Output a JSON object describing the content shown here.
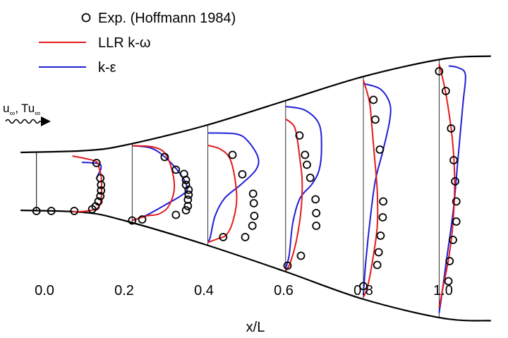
{
  "chart_data": {
    "type": "line",
    "title": "",
    "xlabel": "x/L",
    "ylabel": "",
    "xlim": [
      -0.06,
      1.12
    ],
    "x_ticks": [
      "0.0",
      "0.2",
      "0.4",
      "0.6",
      "0.8",
      "1.0"
    ],
    "x_tick_values": [
      0.0,
      0.2,
      0.4,
      0.6,
      0.8,
      1.0
    ],
    "grid": false,
    "legend_position": "top-left",
    "legend": [
      {
        "label": "Exp. (Hoffmann 1984)",
        "style": "marker",
        "color": "#000000"
      },
      {
        "label": "LLR k-ω",
        "style": "line",
        "color": "#e41a1c"
      },
      {
        "label": "k-ε",
        "style": "line",
        "color": "#1f1fd6"
      }
    ],
    "inflow_label": "u∞, Tu∞",
    "inflow_parts": {
      "u": "u",
      "tu": "Tu",
      "sub": "∞",
      "sep": ","
    },
    "colors": {
      "exp": "#000000",
      "llr": "#e41a1c",
      "ke": "#1f1fd6",
      "wall": "#000000"
    },
    "stations": [
      -0.02,
      0.07,
      0.22,
      0.41,
      0.605,
      0.8,
      0.99
    ],
    "profile_scale": 0.6,
    "walls": {
      "upper": [
        [
          -0.06,
          0.76
        ],
        [
          0.1,
          0.765
        ],
        [
          0.2,
          0.78
        ],
        [
          0.4,
          0.835
        ],
        [
          0.6,
          0.905
        ],
        [
          0.8,
          0.975
        ],
        [
          1.0,
          1.025
        ],
        [
          1.12,
          1.033
        ]
      ],
      "lower": [
        [
          -0.06,
          0.596
        ],
        [
          0.1,
          0.59
        ],
        [
          0.2,
          0.567
        ],
        [
          0.4,
          0.5
        ],
        [
          0.6,
          0.424
        ],
        [
          0.8,
          0.344
        ],
        [
          1.0,
          0.29
        ],
        [
          1.12,
          0.283
        ]
      ]
    },
    "series": [
      {
        "name": "Exp. (Hoffmann 1984)",
        "kind": "points",
        "profiles": [
          {
            "station": -0.02,
            "u": [
              [
                0.0,
                0.594
              ],
              [
                0.062,
                0.594
              ],
              [
                0.158,
                0.594
              ]
            ]
          },
          {
            "station": 0.07,
            "u": [
              [
                0.083,
                0.599
              ],
              [
                0.097,
                0.607
              ],
              [
                0.109,
                0.621
              ],
              [
                0.117,
                0.636
              ],
              [
                0.12,
                0.652
              ],
              [
                0.12,
                0.668
              ],
              [
                0.117,
                0.687
              ],
              [
                0.101,
                0.73
              ]
            ]
          },
          {
            "station": 0.22,
            "u": [
              [
                0.0,
                0.567
              ],
              [
                0.042,
                0.57
              ],
              [
                0.183,
                0.583
              ],
              [
                0.225,
                0.596
              ],
              [
                0.233,
                0.608
              ],
              [
                0.233,
                0.626
              ],
              [
                0.236,
                0.64
              ],
              [
                0.236,
                0.654
              ],
              [
                0.225,
                0.668
              ],
              [
                0.225,
                0.682
              ],
              [
                0.217,
                0.699
              ],
              [
                0.183,
                0.711
              ],
              [
                0.136,
                0.747
              ]
            ]
          },
          {
            "station": 0.41,
            "u": [
              [
                0.064,
                0.52
              ],
              [
                0.156,
                0.52
              ],
              [
                0.186,
                0.552
              ],
              [
                0.194,
                0.58
              ],
              [
                0.192,
                0.616
              ],
              [
                0.189,
                0.643
              ],
              [
                0.144,
                0.698
              ],
              [
                0.103,
                0.753
              ]
            ]
          },
          {
            "station": 0.605,
            "u": [
              [
                0.008,
                0.439
              ],
              [
                0.064,
                0.467
              ],
              [
                0.128,
                0.552
              ],
              [
                0.128,
                0.588
              ],
              [
                0.125,
                0.627
              ],
              [
                0.103,
                0.688
              ],
              [
                0.089,
                0.725
              ],
              [
                0.081,
                0.753
              ],
              [
                0.058,
                0.808
              ]
            ]
          },
          {
            "station": 0.8,
            "u": [
              [
                0.0,
                0.381
              ],
              [
                0.058,
                0.441
              ],
              [
                0.064,
                0.477
              ],
              [
                0.072,
                0.524
              ],
              [
                0.081,
                0.576
              ],
              [
                0.083,
                0.621
              ],
              [
                0.069,
                0.768
              ],
              [
                0.05,
                0.853
              ],
              [
                0.042,
                0.909
              ]
            ]
          },
          {
            "station": 0.99,
            "u": [
              [
                0.039,
                0.395
              ],
              [
                0.044,
                0.452
              ],
              [
                0.058,
                0.512
              ],
              [
                0.072,
                0.564
              ],
              [
                0.072,
                0.621
              ],
              [
                0.067,
                0.678
              ],
              [
                0.061,
                0.738
              ],
              [
                0.05,
                0.828
              ],
              [
                0.028,
                0.934
              ],
              [
                0.0,
                0.99
              ]
            ]
          }
        ]
      },
      {
        "name": "LLR k-ω",
        "kind": "line",
        "profiles": [
          {
            "station": 0.07,
            "u": [
              [
                0.0,
                0.592
              ],
              [
                0.05,
                0.593
              ],
              [
                0.1,
                0.6
              ],
              [
                0.117,
                0.615
              ],
              [
                0.122,
                0.64
              ],
              [
                0.122,
                0.67
              ],
              [
                0.12,
                0.695
              ],
              [
                0.112,
                0.715
              ],
              [
                0.097,
                0.735
              ],
              [
                0.0,
                0.75
              ]
            ]
          },
          {
            "station": 0.22,
            "u": [
              [
                0.0,
                0.567
              ],
              [
                0.06,
                0.58
              ],
              [
                0.11,
                0.585
              ],
              [
                0.15,
                0.605
              ],
              [
                0.175,
                0.65
              ],
              [
                0.17,
                0.7
              ],
              [
                0.14,
                0.755
              ],
              [
                0.09,
                0.775
              ],
              [
                0.0,
                0.779
              ]
            ]
          },
          {
            "station": 0.41,
            "u": [
              [
                0.0,
                0.505
              ],
              [
                0.04,
                0.515
              ],
              [
                0.075,
                0.525
              ],
              [
                0.1,
                0.555
              ],
              [
                0.12,
                0.62
              ],
              [
                0.112,
                0.69
              ],
              [
                0.09,
                0.745
              ],
              [
                0.05,
                0.77
              ],
              [
                0.0,
                0.78
              ]
            ]
          },
          {
            "station": 0.605,
            "u": [
              [
                0.0,
                0.425
              ],
              [
                0.018,
                0.445
              ],
              [
                0.045,
                0.51
              ],
              [
                0.065,
                0.6
              ],
              [
                0.069,
                0.68
              ],
              [
                0.058,
                0.75
              ],
              [
                0.048,
                0.8
              ],
              [
                0.035,
                0.835
              ],
              [
                0.0,
                0.855
              ]
            ]
          },
          {
            "station": 0.8,
            "u": [
              [
                0.0,
                0.35
              ],
              [
                0.018,
                0.38
              ],
              [
                0.04,
                0.46
              ],
              [
                0.058,
                0.55
              ],
              [
                0.058,
                0.65
              ],
              [
                0.045,
                0.76
              ],
              [
                0.035,
                0.84
              ],
              [
                0.025,
                0.905
              ],
              [
                0.0,
                0.965
              ]
            ]
          },
          {
            "station": 0.99,
            "u": [
              [
                0.0,
                0.32
              ],
              [
                0.014,
                0.37
              ],
              [
                0.04,
                0.46
              ],
              [
                0.058,
                0.56
              ],
              [
                0.065,
                0.68
              ],
              [
                0.055,
                0.8
              ],
              [
                0.03,
                0.92
              ],
              [
                0.008,
                0.99
              ],
              [
                0.0,
                1.01
              ]
            ]
          }
        ]
      },
      {
        "name": "k-ε",
        "kind": "line",
        "profiles": [
          {
            "station": 0.07,
            "u": [
              [
                0.1,
                0.685
              ],
              [
                0.11,
                0.7
              ],
              [
                0.12,
                0.715
              ],
              [
                0.11,
                0.728
              ],
              [
                0.04,
                0.732
              ]
            ]
          },
          {
            "station": 0.22,
            "u": [
              [
                0.0,
                0.567
              ],
              [
                0.06,
                0.582
              ],
              [
                0.14,
                0.612
              ],
              [
                0.21,
                0.64
              ],
              [
                0.23,
                0.66
              ],
              [
                0.2,
                0.7
              ],
              [
                0.14,
                0.745
              ],
              [
                0.08,
                0.772
              ],
              [
                0.0,
                0.779
              ]
            ]
          },
          {
            "station": 0.41,
            "u": [
              [
                0.0,
                0.505
              ],
              [
                0.01,
                0.52
              ],
              [
                0.03,
                0.58
              ],
              [
                0.07,
                0.63
              ],
              [
                0.14,
                0.67
              ],
              [
                0.2,
                0.71
              ],
              [
                0.21,
                0.745
              ],
              [
                0.17,
                0.79
              ],
              [
                0.12,
                0.812
              ],
              [
                0.0,
                0.815
              ]
            ]
          },
          {
            "station": 0.605,
            "u": [
              [
                0.0,
                0.43
              ],
              [
                0.015,
                0.47
              ],
              [
                0.03,
                0.56
              ],
              [
                0.06,
                0.63
              ],
              [
                0.11,
                0.67
              ],
              [
                0.14,
                0.71
              ],
              [
                0.15,
                0.77
              ],
              [
                0.14,
                0.84
              ],
              [
                0.08,
                0.88
              ],
              [
                0.0,
                0.89
              ]
            ]
          },
          {
            "station": 0.8,
            "u": [
              [
                0.0,
                0.355
              ],
              [
                0.01,
                0.45
              ],
              [
                0.03,
                0.58
              ],
              [
                0.05,
                0.68
              ],
              [
                0.08,
                0.76
              ],
              [
                0.11,
                0.85
              ],
              [
                0.11,
                0.9
              ],
              [
                0.07,
                0.94
              ],
              [
                0.0,
                0.955
              ]
            ]
          },
          {
            "station": 0.99,
            "u": [
              [
                0.0,
                0.305
              ],
              [
                0.01,
                0.35
              ],
              [
                0.03,
                0.45
              ],
              [
                0.06,
                0.6
              ],
              [
                0.08,
                0.75
              ],
              [
                0.1,
                0.9
              ],
              [
                0.11,
                0.98
              ],
              [
                0.08,
                1.0
              ],
              [
                0.04,
                1.005
              ]
            ]
          }
        ]
      }
    ]
  }
}
